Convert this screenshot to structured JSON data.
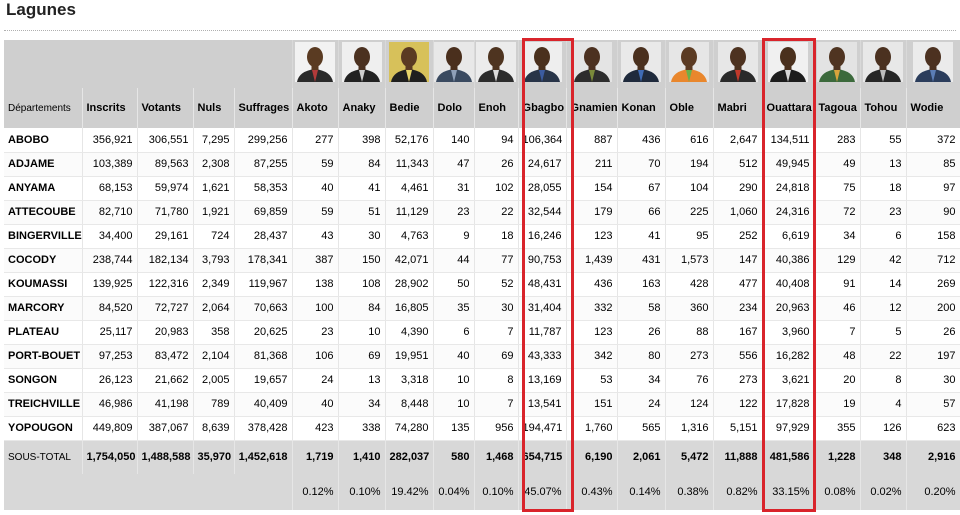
{
  "page": {
    "title": "Lagunes"
  },
  "table": {
    "dept_header": "Départements",
    "stat_headers": [
      "Inscrits",
      "Votants",
      "Nuls",
      "Suffrages"
    ],
    "candidates": [
      {
        "name": "Akoto",
        "portrait": "portrait-akoto",
        "bg": "#f2f2f2",
        "skin": "#5a3b22",
        "suit": "#2a2a2a",
        "accent": "#b23a3a"
      },
      {
        "name": "Anaky",
        "portrait": "portrait-anaky",
        "bg": "#efefef",
        "skin": "#4b3120",
        "suit": "#222222",
        "accent": "#cfcfcf"
      },
      {
        "name": "Bedie",
        "portrait": "portrait-bedie",
        "bg": "#d7c15a",
        "skin": "#5a3a22",
        "suit": "#1f1f1f",
        "accent": "#e7d46a"
      },
      {
        "name": "Dolo",
        "portrait": "portrait-dolo",
        "bg": "#e8e8e8",
        "skin": "#4a2f1d",
        "suit": "#3a4a60",
        "accent": "#8fa0b8"
      },
      {
        "name": "Enoh",
        "portrait": "portrait-enoh",
        "bg": "#ececec",
        "skin": "#4e3420",
        "suit": "#2c2c2c",
        "accent": "#dcdcdc"
      },
      {
        "name": "Gbagbo",
        "portrait": "portrait-gbagbo",
        "bg": "#eeeeee",
        "skin": "#4a301d",
        "suit": "#283448",
        "accent": "#3b5ba0"
      },
      {
        "name": "Gnamien",
        "portrait": "portrait-gnamien",
        "bg": "#e4e4e4",
        "skin": "#4c3120",
        "suit": "#2d2d2d",
        "accent": "#7a8a3a"
      },
      {
        "name": "Konan",
        "portrait": "portrait-konan",
        "bg": "#e9e9e9",
        "skin": "#4a301e",
        "suit": "#1f2a3c",
        "accent": "#3f6bb5"
      },
      {
        "name": "Oble",
        "portrait": "portrait-oble",
        "bg": "#e6e6e6",
        "skin": "#5b3b23",
        "suit": "#e9872d",
        "accent": "#6bb04a"
      },
      {
        "name": "Mabri",
        "portrait": "portrait-mabri",
        "bg": "#e7e7e7",
        "skin": "#4d3220",
        "suit": "#2a2a2a",
        "accent": "#c0392b"
      },
      {
        "name": "Ouattara",
        "portrait": "portrait-ouattara",
        "bg": "#f0f0f0",
        "skin": "#4a301d",
        "suit": "#1d1d1d",
        "accent": "#d6d6d6"
      },
      {
        "name": "Tagoua",
        "portrait": "portrait-tagoua",
        "bg": "#e3e3e3",
        "skin": "#4f3421",
        "suit": "#3c6a3c",
        "accent": "#d7a33c"
      },
      {
        "name": "Tohou",
        "portrait": "portrait-tohou",
        "bg": "#e8e8e8",
        "skin": "#4b3120",
        "suit": "#262626",
        "accent": "#bcbcbc"
      },
      {
        "name": "Wodie",
        "portrait": "portrait-wodie",
        "bg": "#ebebeb",
        "skin": "#4c3120",
        "suit": "#2b3d5c",
        "accent": "#5b7db5"
      }
    ],
    "rows": [
      {
        "dept": "ABOBO",
        "values": [
          "356,921",
          "306,551",
          "7,295",
          "299,256",
          "277",
          "398",
          "52,176",
          "140",
          "94",
          "106,364",
          "887",
          "436",
          "616",
          "2,647",
          "134,511",
          "283",
          "55",
          "372"
        ]
      },
      {
        "dept": "ADJAME",
        "values": [
          "103,389",
          "89,563",
          "2,308",
          "87,255",
          "59",
          "84",
          "11,343",
          "47",
          "26",
          "24,617",
          "211",
          "70",
          "194",
          "512",
          "49,945",
          "49",
          "13",
          "85"
        ]
      },
      {
        "dept": "ANYAMA",
        "values": [
          "68,153",
          "59,974",
          "1,621",
          "58,353",
          "40",
          "41",
          "4,461",
          "31",
          "102",
          "28,055",
          "154",
          "67",
          "104",
          "290",
          "24,818",
          "75",
          "18",
          "97"
        ]
      },
      {
        "dept": "ATTECOUBE",
        "values": [
          "82,710",
          "71,780",
          "1,921",
          "69,859",
          "59",
          "51",
          "11,129",
          "23",
          "22",
          "32,544",
          "179",
          "66",
          "225",
          "1,060",
          "24,316",
          "72",
          "23",
          "90"
        ]
      },
      {
        "dept": "BINGERVILLE",
        "values": [
          "34,400",
          "29,161",
          "724",
          "28,437",
          "43",
          "30",
          "4,763",
          "9",
          "18",
          "16,246",
          "123",
          "41",
          "95",
          "252",
          "6,619",
          "34",
          "6",
          "158"
        ]
      },
      {
        "dept": "COCODY",
        "values": [
          "238,744",
          "182,134",
          "3,793",
          "178,341",
          "387",
          "150",
          "42,071",
          "44",
          "77",
          "90,753",
          "1,439",
          "431",
          "1,573",
          "147",
          "40,386",
          "129",
          "42",
          "712"
        ]
      },
      {
        "dept": "KOUMASSI",
        "values": [
          "139,925",
          "122,316",
          "2,349",
          "119,967",
          "138",
          "108",
          "28,902",
          "50",
          "52",
          "48,431",
          "436",
          "163",
          "428",
          "477",
          "40,408",
          "91",
          "14",
          "269"
        ]
      },
      {
        "dept": "MARCORY",
        "values": [
          "84,520",
          "72,727",
          "2,064",
          "70,663",
          "100",
          "84",
          "16,805",
          "35",
          "30",
          "31,404",
          "332",
          "58",
          "360",
          "234",
          "20,963",
          "46",
          "12",
          "200"
        ]
      },
      {
        "dept": "PLATEAU",
        "values": [
          "25,117",
          "20,983",
          "358",
          "20,625",
          "23",
          "10",
          "4,390",
          "6",
          "7",
          "11,787",
          "123",
          "26",
          "88",
          "167",
          "3,960",
          "7",
          "5",
          "26"
        ]
      },
      {
        "dept": "PORT-BOUET",
        "values": [
          "97,253",
          "83,472",
          "2,104",
          "81,368",
          "106",
          "69",
          "19,951",
          "40",
          "69",
          "43,333",
          "342",
          "80",
          "273",
          "556",
          "16,282",
          "48",
          "22",
          "197"
        ]
      },
      {
        "dept": "SONGON",
        "values": [
          "26,123",
          "21,662",
          "2,005",
          "19,657",
          "24",
          "13",
          "3,318",
          "10",
          "8",
          "13,169",
          "53",
          "34",
          "76",
          "273",
          "3,621",
          "20",
          "8",
          "30"
        ]
      },
      {
        "dept": "TREICHVILLE",
        "values": [
          "46,986",
          "41,198",
          "789",
          "40,409",
          "40",
          "34",
          "8,448",
          "10",
          "7",
          "13,541",
          "151",
          "24",
          "124",
          "122",
          "17,828",
          "19",
          "4",
          "57"
        ]
      },
      {
        "dept": "YOPOUGON",
        "values": [
          "449,809",
          "387,067",
          "8,639",
          "378,428",
          "423",
          "338",
          "74,280",
          "135",
          "956",
          "194,471",
          "1,760",
          "565",
          "1,316",
          "5,151",
          "97,929",
          "355",
          "126",
          "623"
        ]
      }
    ],
    "total": {
      "label": "SOUS-TOTAL",
      "values": [
        "1,754,050",
        "1,488,588",
        "35,970",
        "1,452,618",
        "1,719",
        "1,410",
        "282,037",
        "580",
        "1,468",
        "654,715",
        "6,190",
        "2,061",
        "5,472",
        "11,888",
        "481,586",
        "1,228",
        "348",
        "2,916"
      ]
    },
    "percentages": [
      "0.12%",
      "0.10%",
      "19.42%",
      "0.04%",
      "0.10%",
      "45.07%",
      "0.43%",
      "0.14%",
      "0.38%",
      "0.82%",
      "33.15%",
      "0.08%",
      "0.02%",
      "0.20%"
    ]
  },
  "highlights": {
    "color": "#d9242b",
    "columns": [
      "Gbagbo",
      "Ouattara"
    ]
  }
}
